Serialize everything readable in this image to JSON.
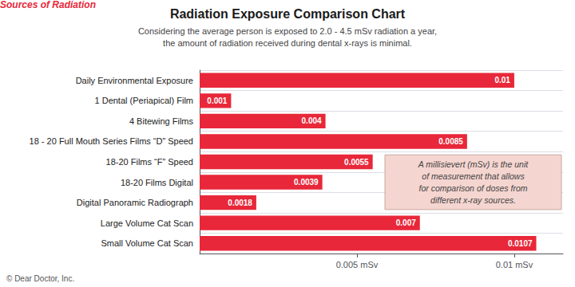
{
  "chart_data": {
    "type": "bar",
    "orientation": "horizontal",
    "title": "Radiation Exposure Comparison Chart",
    "subtitle": "Considering the average person is exposed to 2.0 - 4.5 mSv radiation a year,\nthe amount of radiation received during dental x-rays is minimal.",
    "ylabel": "Sources of Radiation",
    "annotation": "A millisievert (mSv) is the unit\nof measurement that allows\nfor comparison of doses from\ndifferent x-ray sources.",
    "footer": "© Dear Doctor, Inc.",
    "categories": [
      "Daily Environmental Exposure",
      "1 Dental (Periapical) Film",
      "4 Bitewing Films",
      "18 - 20 Full Mouth Series Films “D” Speed",
      "18-20 Films “F” Speed",
      "18-20 Films Digital",
      "Digital Panoramic Radiograph",
      "Large Volume Cat Scan",
      "Small Volume Cat Scan"
    ],
    "values": [
      0.01,
      0.001,
      0.004,
      0.0085,
      0.0055,
      0.0039,
      0.0018,
      0.007,
      0.0107
    ],
    "color": "#E8283A",
    "xlim": [
      0,
      0.01155
    ],
    "xticks": [
      {
        "value": 0.005,
        "label": "0.005 mSv"
      },
      {
        "value": 0.01,
        "label": "0.01 mSv"
      }
    ],
    "data_labels": true,
    "grid": true
  }
}
